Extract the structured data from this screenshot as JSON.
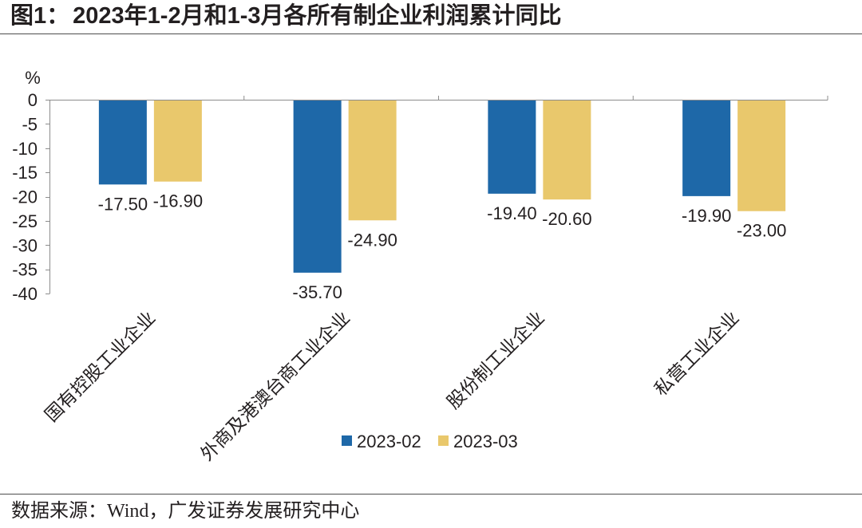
{
  "header": {
    "figure_label": "图1："
  },
  "chart_data": {
    "type": "bar",
    "title": "2023年1-2月和1-3月各所有制企业利润累计同比",
    "ylabel": "%",
    "categories": [
      "国有控股工业企业",
      "外商及港澳台商工业企业",
      "股份制工业企业",
      "私营工业企业"
    ],
    "series": [
      {
        "name": "2023-02",
        "color": "#1e68a8",
        "values": [
          -17.5,
          -35.7,
          -19.4,
          -19.9
        ]
      },
      {
        "name": "2023-03",
        "color": "#e9c86c",
        "values": [
          -16.9,
          -24.9,
          -20.6,
          -23.0
        ]
      }
    ],
    "ylim": [
      -40,
      0
    ],
    "yticks": [
      0,
      -5,
      -10,
      -15,
      -20,
      -25,
      -30,
      -35,
      -40
    ],
    "grid": false,
    "legend": "bottom"
  },
  "source": "数据来源：Wind，广发证券发展研究中心"
}
